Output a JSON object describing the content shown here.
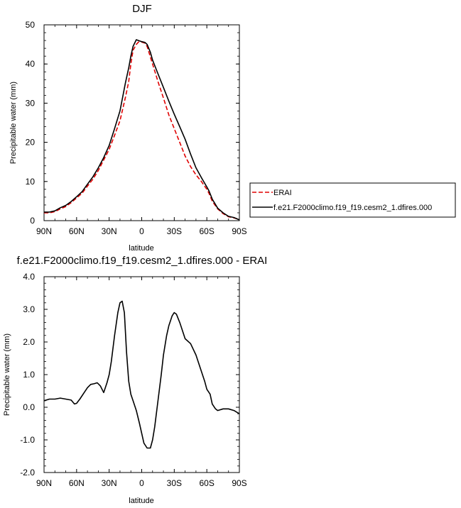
{
  "chart_data": [
    {
      "type": "line",
      "title": "DJF",
      "xlabel": "latitude",
      "ylabel": "Precipitable water (mm)",
      "x_tick_labels": [
        "90N",
        "60N",
        "30N",
        "0",
        "30S",
        "60S",
        "90S"
      ],
      "x_ticks": [
        90,
        60,
        30,
        0,
        -30,
        -60,
        -90
      ],
      "xlim": [
        90,
        -90
      ],
      "y_tick_labels": [
        "0",
        "10",
        "20",
        "30",
        "40",
        "50"
      ],
      "y_ticks": [
        0,
        10,
        20,
        30,
        40,
        50
      ],
      "ylim": [
        0,
        50
      ],
      "legend_position": "right",
      "series": [
        {
          "name": "ERAI",
          "color": "#e00000",
          "dash": "dashed",
          "x": [
            90,
            85,
            80,
            75,
            70,
            65,
            60,
            55,
            50,
            45,
            40,
            35,
            30,
            25,
            20,
            15,
            12,
            10,
            8,
            5,
            3,
            0,
            -3,
            -5,
            -8,
            -10,
            -15,
            -20,
            -25,
            -30,
            -35,
            -40,
            -45,
            -50,
            -55,
            -60,
            -62,
            -65,
            -70,
            -75,
            -80,
            -85,
            -90
          ],
          "y": [
            2.0,
            2.0,
            2.3,
            3.0,
            3.6,
            4.6,
            5.8,
            7.0,
            8.8,
            10.6,
            12.8,
            15.5,
            18.2,
            21.8,
            25.5,
            31.5,
            35.5,
            40.0,
            43.5,
            45.0,
            45.6,
            45.6,
            45.3,
            44.5,
            41.8,
            40.0,
            35.5,
            31.3,
            27.0,
            23.5,
            20.0,
            16.5,
            13.8,
            11.7,
            10.0,
            8.0,
            7.0,
            5.0,
            3.0,
            1.8,
            1.0,
            0.7,
            0.3
          ]
        },
        {
          "name": "f.e21.F2000climo.f19_f19.cesm2_1.dfires.000",
          "color": "#000000",
          "dash": "solid",
          "x": [
            90,
            85,
            80,
            75,
            70,
            65,
            60,
            55,
            50,
            45,
            40,
            35,
            30,
            25,
            20,
            15,
            12,
            10,
            8,
            5,
            3,
            0,
            -3,
            -5,
            -8,
            -10,
            -15,
            -20,
            -25,
            -30,
            -35,
            -40,
            -45,
            -50,
            -55,
            -60,
            -62,
            -65,
            -70,
            -75,
            -80,
            -85,
            -90
          ],
          "y": [
            2.2,
            2.2,
            2.5,
            3.3,
            3.9,
            4.9,
            6.1,
            7.4,
            9.3,
            11.2,
            13.5,
            16.1,
            19.2,
            23.5,
            28.0,
            35.2,
            39.0,
            42.0,
            44.5,
            46.2,
            46.0,
            45.7,
            45.5,
            45.0,
            43.0,
            41.0,
            37.5,
            34.0,
            30.5,
            27.2,
            24.0,
            20.8,
            17.0,
            13.5,
            11.0,
            8.6,
            7.6,
            5.5,
            3.2,
            2.0,
            1.1,
            0.8,
            0.2
          ]
        }
      ]
    },
    {
      "type": "line",
      "title": "f.e21.F2000climo.f19_f19.cesm2_1.dfires.000 - ERAI",
      "xlabel": "latitude",
      "ylabel": "Precipitable water (mm)",
      "x_tick_labels": [
        "90N",
        "60N",
        "30N",
        "0",
        "30S",
        "60S",
        "90S"
      ],
      "x_ticks": [
        90,
        60,
        30,
        0,
        -30,
        -60,
        -90
      ],
      "xlim": [
        90,
        -90
      ],
      "y_tick_labels": [
        "-2.0",
        "-1.0",
        "0.0",
        "1.0",
        "2.0",
        "3.0",
        "4.0"
      ],
      "y_ticks": [
        -2,
        -1,
        0,
        1,
        2,
        3,
        4
      ],
      "ylim": [
        -2,
        4
      ],
      "series": [
        {
          "color": "#000000",
          "dash": "solid",
          "x": [
            90,
            85,
            80,
            75,
            70,
            65,
            62,
            60,
            57,
            53,
            50,
            47,
            44,
            41,
            38,
            35,
            32,
            30,
            28,
            25,
            22,
            20,
            18,
            16,
            14,
            12,
            10,
            8,
            5,
            2,
            0,
            -2,
            -5,
            -8,
            -10,
            -12,
            -15,
            -18,
            -20,
            -23,
            -25,
            -28,
            -30,
            -32,
            -35,
            -38,
            -40,
            -45,
            -50,
            -55,
            -58,
            -60,
            -63,
            -65,
            -68,
            -70,
            -75,
            -80,
            -85,
            -90
          ],
          "y": [
            0.2,
            0.25,
            0.25,
            0.28,
            0.25,
            0.22,
            0.1,
            0.12,
            0.25,
            0.45,
            0.6,
            0.7,
            0.72,
            0.75,
            0.65,
            0.45,
            0.75,
            1.0,
            1.4,
            2.2,
            2.9,
            3.2,
            3.25,
            2.9,
            1.7,
            0.8,
            0.4,
            0.2,
            -0.1,
            -0.5,
            -0.8,
            -1.1,
            -1.25,
            -1.25,
            -1.0,
            -0.6,
            0.2,
            1.0,
            1.6,
            2.2,
            2.5,
            2.8,
            2.9,
            2.85,
            2.6,
            2.3,
            2.1,
            1.95,
            1.6,
            1.1,
            0.8,
            0.55,
            0.4,
            0.1,
            -0.05,
            -0.1,
            -0.05,
            -0.05,
            -0.1,
            -0.2
          ]
        }
      ]
    }
  ]
}
